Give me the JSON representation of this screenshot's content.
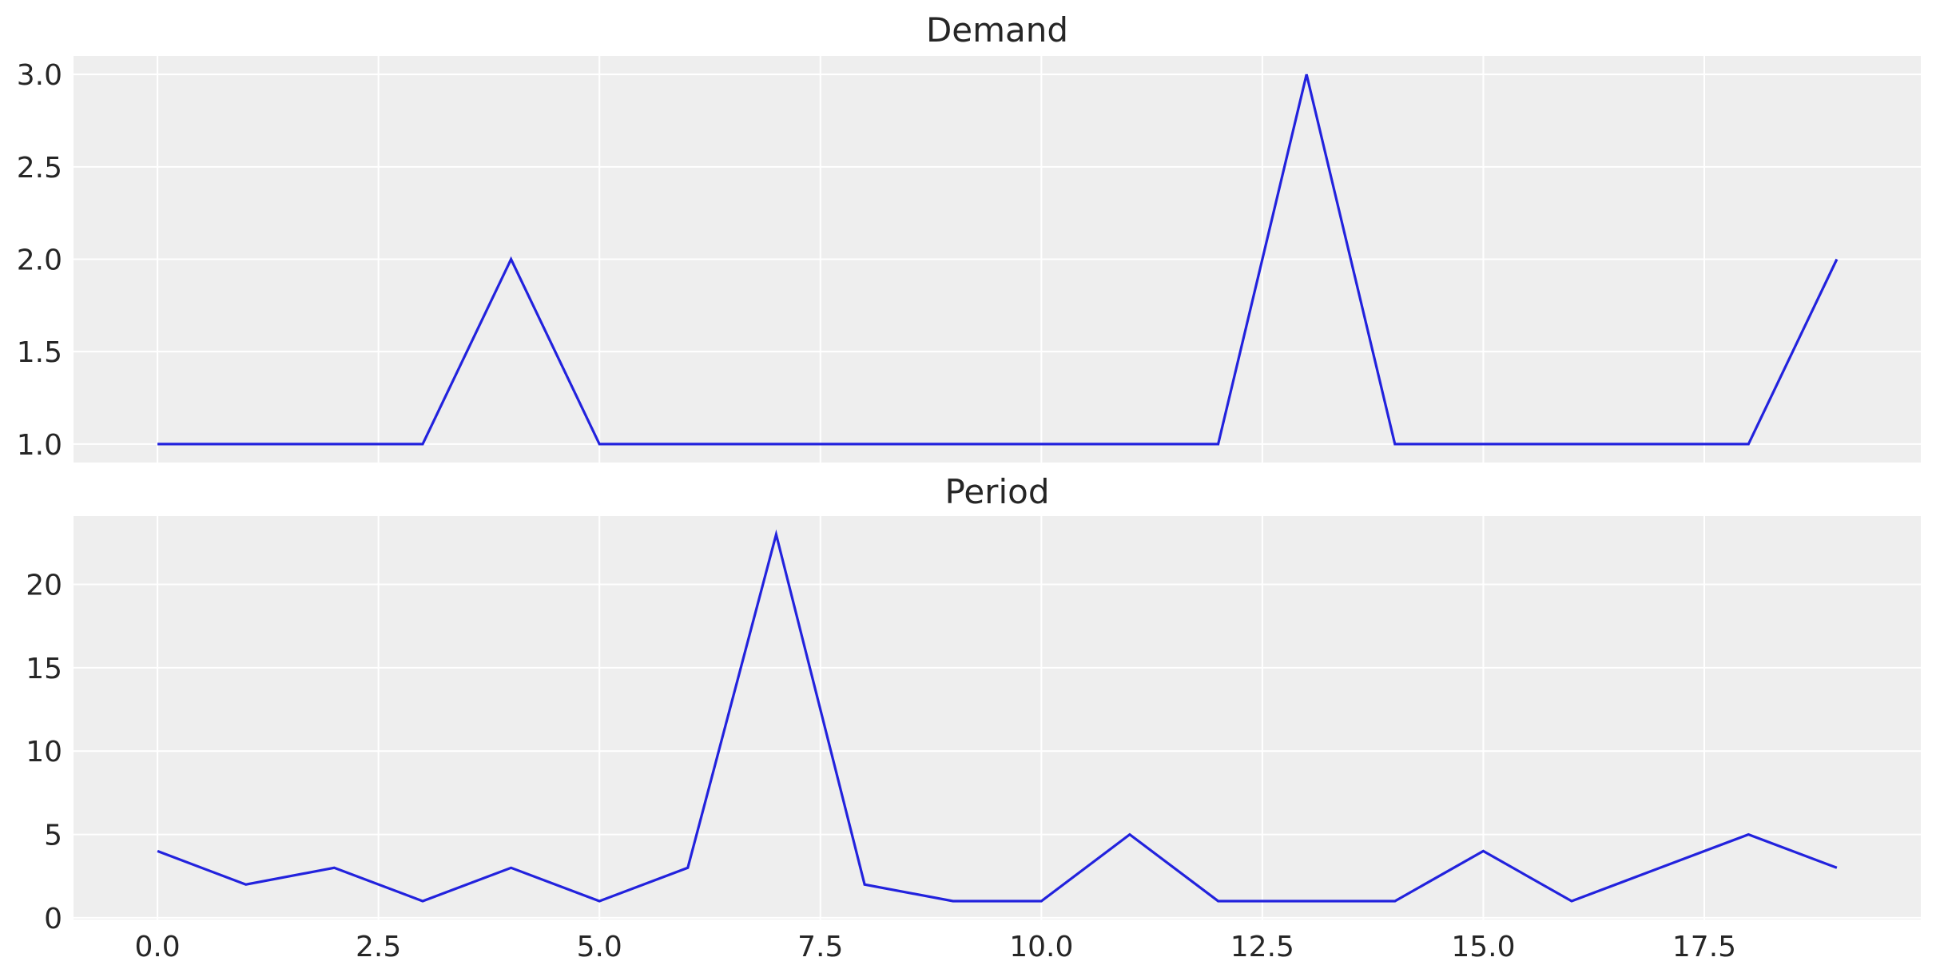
{
  "chart_data": [
    {
      "type": "line",
      "title": "Demand",
      "xlabel": "",
      "ylabel": "",
      "x": [
        0,
        1,
        2,
        3,
        4,
        5,
        6,
        7,
        8,
        9,
        10,
        11,
        12,
        13,
        14,
        15,
        16,
        17,
        18,
        19
      ],
      "series": [
        {
          "values": [
            1,
            1,
            1,
            1,
            2,
            1,
            1,
            1,
            1,
            1,
            1,
            1,
            1,
            3,
            1,
            1,
            1,
            1,
            1,
            2
          ]
        }
      ],
      "xlim": [
        -0.95,
        19.95
      ],
      "ylim": [
        0.9,
        3.1
      ],
      "yticks": [
        1.0,
        1.5,
        2.0,
        2.5,
        3.0
      ],
      "ytick_labels": [
        "1.0",
        "1.5",
        "2.0",
        "2.5",
        "3.0"
      ],
      "xticks": [
        0,
        2.5,
        5,
        7.5,
        10,
        12.5,
        15,
        17.5
      ],
      "xtick_labels": [],
      "grid": true,
      "line_color": "#2222dd",
      "background": "#eeeeee"
    },
    {
      "type": "line",
      "title": "Period",
      "xlabel": "",
      "ylabel": "",
      "x": [
        0,
        1,
        2,
        3,
        4,
        5,
        6,
        7,
        8,
        9,
        10,
        11,
        12,
        13,
        14,
        15,
        16,
        17,
        18,
        19
      ],
      "series": [
        {
          "values": [
            4,
            2,
            3,
            1,
            3,
            1,
            3,
            23,
            2,
            1,
            1,
            5,
            1,
            1,
            1,
            4,
            1,
            3,
            5,
            3
          ]
        }
      ],
      "xlim": [
        -0.95,
        19.95
      ],
      "ylim": [
        -0.1,
        24.1
      ],
      "yticks": [
        0,
        5,
        10,
        15,
        20
      ],
      "ytick_labels": [
        "0",
        "5",
        "10",
        "15",
        "20"
      ],
      "xticks": [
        0,
        2.5,
        5,
        7.5,
        10,
        12.5,
        15,
        17.5
      ],
      "xtick_labels": [
        "0.0",
        "2.5",
        "5.0",
        "7.5",
        "10.0",
        "12.5",
        "15.0",
        "17.5"
      ],
      "grid": true,
      "line_color": "#2222dd",
      "background": "#eeeeee"
    }
  ]
}
